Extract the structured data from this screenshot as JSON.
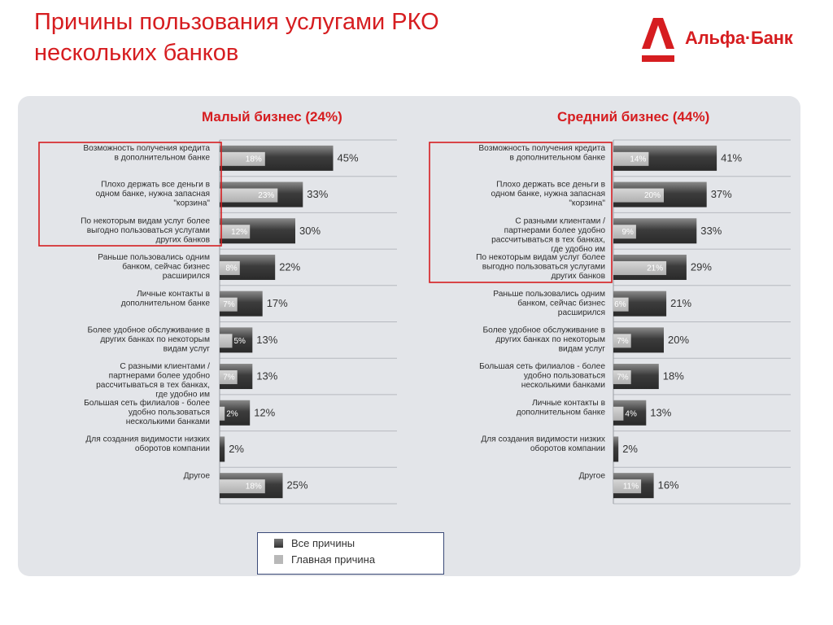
{
  "header": {
    "title_line1": "Причины пользования услугами РКО",
    "title_line2": "нескольких банков",
    "logo_text": "Альфа·Банк",
    "logo_icon": "alfa-a-logo-icon"
  },
  "colors": {
    "accent_red": "#d61d20",
    "bar_all": "#4a4a4a",
    "bar_main": "#c0c0c0",
    "panel_bg": "#e3e5e9"
  },
  "legend": {
    "all_label": "Все причины",
    "main_label": "Главная причина"
  },
  "chart_data": [
    {
      "type": "bar",
      "orientation": "horizontal",
      "title": "Малый бизнес (24%)",
      "categories": [
        "Возможность получения кредита в дополнительном банке",
        "Плохо держать все деньги в одном банке, нужна запасная \"корзина\"",
        "По некоторым видам услуг более выгодно пользоваться услугами других банков",
        "Раньше пользовались одним банком, сейчас бизнес расширился",
        "Личные контакты в дополнительном банке",
        "Более удобное обслуживание в других банках по некоторым видам услуг",
        "С разными клиентами / партнерами более удобно рассчитываться в тех банках, где удобно им",
        "Большая сеть филиалов - более удобно пользоваться несколькими банками",
        "Для создания видимости низких оборотов компании",
        "Другое"
      ],
      "series": [
        {
          "name": "Все причины",
          "values": [
            45,
            33,
            30,
            22,
            17,
            13,
            13,
            12,
            2,
            25
          ]
        },
        {
          "name": "Главная причина",
          "values": [
            18,
            23,
            12,
            8,
            7,
            5,
            7,
            2,
            null,
            18
          ]
        }
      ],
      "highlighted_categories": [
        0,
        1,
        2
      ],
      "unit": "%"
    },
    {
      "type": "bar",
      "orientation": "horizontal",
      "title": "Средний бизнес (44%)",
      "categories": [
        "Возможность получения кредита в дополнительном банке",
        "Плохо держать все деньги в одном банке, нужна запасная \"корзина\"",
        "С разными клиентами / партнерами более удобно рассчитываться в тех банках, где удобно им",
        "По некоторым видам услуг более выгодно пользоваться услугами других банков",
        "Раньше пользовались одним банком, сейчас бизнес расширился",
        "Более удобное обслуживание в других банках по некоторым видам услуг",
        "Большая сеть филиалов - более удобно пользоваться несколькими банками",
        "Личные контакты в дополнительном банке",
        "Для создания видимости низких оборотов компании",
        "Другое"
      ],
      "series": [
        {
          "name": "Все причины",
          "values": [
            41,
            37,
            33,
            29,
            21,
            20,
            18,
            13,
            2,
            16
          ]
        },
        {
          "name": "Главная причина",
          "values": [
            14,
            20,
            9,
            21,
            6,
            7,
            7,
            4,
            null,
            11
          ]
        }
      ],
      "highlighted_categories": [
        0,
        1,
        2,
        3
      ],
      "unit": "%"
    }
  ]
}
